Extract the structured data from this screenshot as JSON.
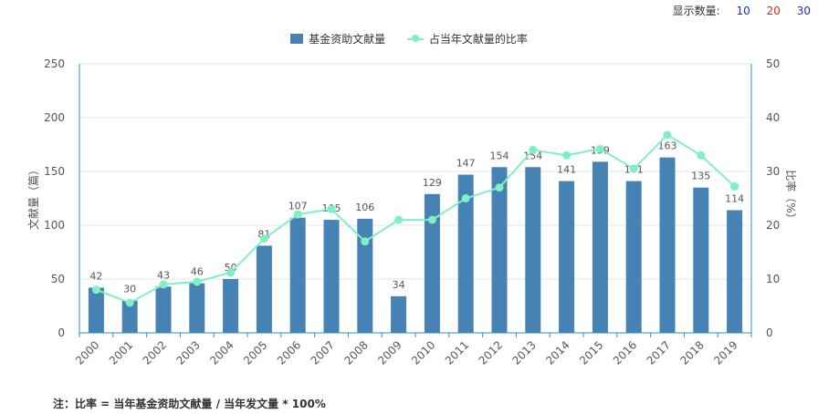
{
  "controls": {
    "label": "显示数量:",
    "options": [
      "10",
      "20",
      "30"
    ]
  },
  "note": "注：比率 = 当年基金资助文献量 / 当年发文量 * 100%",
  "chart_data": {
    "type": "bar",
    "categories": [
      "2000",
      "2001",
      "2002",
      "2003",
      "2004",
      "2005",
      "2006",
      "2007",
      "2008",
      "2009",
      "2010",
      "2011",
      "2012",
      "2013",
      "2014",
      "2015",
      "2016",
      "2017",
      "2018",
      "2019"
    ],
    "series": [
      {
        "name": "基金资助文献量",
        "type": "bar",
        "axis": "left",
        "values": [
          42,
          30,
          43,
          46,
          50,
          81,
          107,
          105,
          106,
          34,
          129,
          147,
          154,
          154,
          141,
          159,
          141,
          163,
          135,
          114
        ]
      },
      {
        "name": "占当年文献量的比率",
        "type": "line",
        "axis": "right",
        "values": [
          8,
          5.6,
          9,
          9.5,
          11.2,
          17.5,
          22,
          23,
          17,
          21,
          21,
          25,
          27,
          34,
          33,
          34.2,
          30.5,
          36.8,
          33,
          27.2
        ]
      }
    ],
    "ylabel_left": "文献量（篇）",
    "ylabel_right": "比率（%）",
    "ylim_left": [
      0,
      250
    ],
    "yticks_left": [
      0,
      50,
      100,
      150,
      200,
      250
    ],
    "ylim_right": [
      0,
      50
    ],
    "yticks_right": [
      0,
      10,
      20,
      30,
      40,
      50
    ],
    "grid": true,
    "legend_position": "top-center",
    "colors": {
      "bar": "#4682b4",
      "line": "#7ff0c4",
      "axis": "#2f8fc8"
    }
  }
}
